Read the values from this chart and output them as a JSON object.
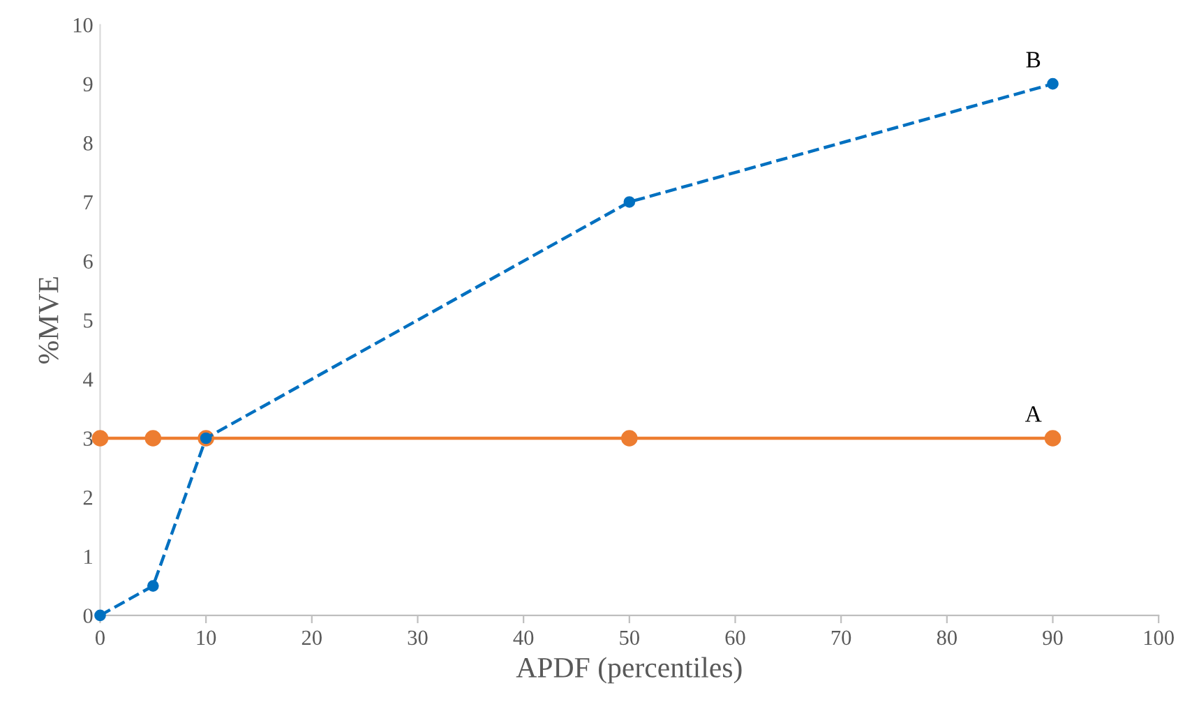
{
  "chart_data": {
    "type": "line",
    "xlabel": "APDF (percentiles)",
    "ylabel": "%MVE",
    "x": [
      0,
      5,
      10,
      50,
      90
    ],
    "series": [
      {
        "name": "A",
        "color": "#ed7d31",
        "values": [
          3,
          3,
          3,
          3,
          3
        ],
        "line_style": "solid",
        "marker": "circle"
      },
      {
        "name": "B",
        "color": "#0070c0",
        "values": [
          0,
          0.5,
          3,
          7,
          9
        ],
        "line_style": "dashed",
        "marker": "circle"
      }
    ],
    "xlim": [
      0,
      100
    ],
    "xticks": [
      0,
      10,
      20,
      30,
      40,
      50,
      60,
      70,
      80,
      90,
      100
    ],
    "ylim": [
      0,
      10
    ],
    "yticks": [
      0,
      1,
      2,
      3,
      4,
      5,
      6,
      7,
      8,
      9,
      10
    ],
    "grid": false,
    "legend": false
  }
}
